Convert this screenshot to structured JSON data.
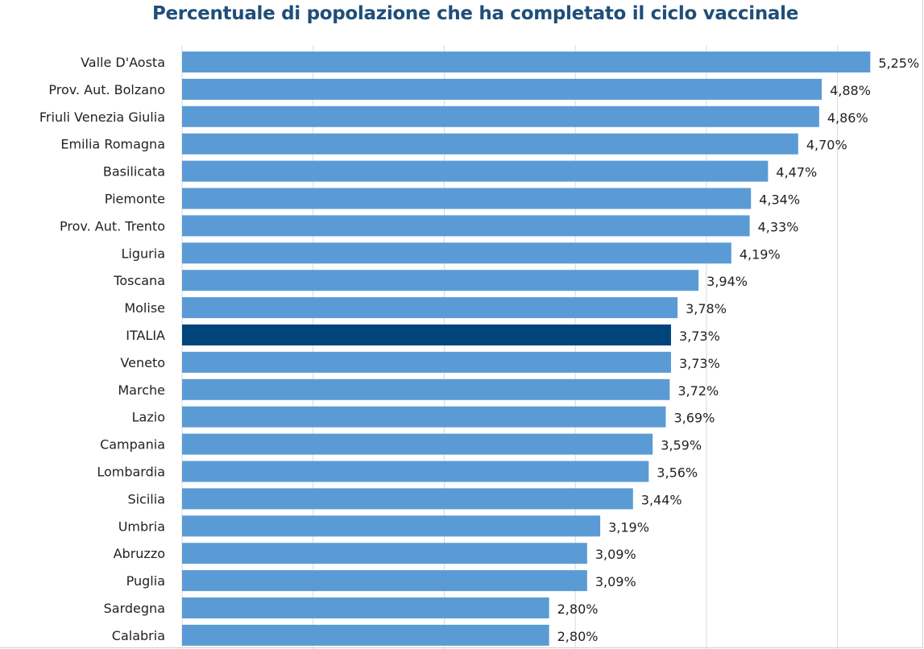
{
  "chart_data": {
    "type": "bar",
    "orientation": "horizontal",
    "title": "Percentuale di popolazione che ha completato il ciclo vaccinale",
    "categories": [
      "Valle D'Aosta",
      "Prov. Aut. Bolzano",
      "Friuli Venezia Giulia",
      "Emilia Romagna",
      "Basilicata",
      "Piemonte",
      "Prov. Aut. Trento",
      "Liguria",
      "Toscana",
      "Molise",
      "ITALIA",
      "Veneto",
      "Marche",
      "Lazio",
      "Campania",
      "Lombardia",
      "Sicilia",
      "Umbria",
      "Abruzzo",
      "Puglia",
      "Sardegna",
      "Calabria"
    ],
    "values": [
      5.25,
      4.88,
      4.86,
      4.7,
      4.47,
      4.34,
      4.33,
      4.19,
      3.94,
      3.78,
      3.73,
      3.73,
      3.72,
      3.69,
      3.59,
      3.56,
      3.44,
      3.19,
      3.09,
      3.09,
      2.8,
      2.8
    ],
    "value_labels": [
      "5,25%",
      "4,88%",
      "4,86%",
      "4,70%",
      "4,47%",
      "4,34%",
      "4,33%",
      "4,19%",
      "3,94%",
      "3,78%",
      "3,73%",
      "3,73%",
      "3,72%",
      "3,69%",
      "3,59%",
      "3,56%",
      "3,44%",
      "3,19%",
      "3,09%",
      "3,09%",
      "2,80%",
      "2,80%"
    ],
    "highlight_category": "ITALIA",
    "colors": {
      "bar": "#5b9bd5",
      "highlight": "#00447c",
      "title": "#1f4e79",
      "grid": "#d9d9d9"
    },
    "xlim": [
      0,
      5.5
    ],
    "grid": true,
    "legend": "none"
  }
}
